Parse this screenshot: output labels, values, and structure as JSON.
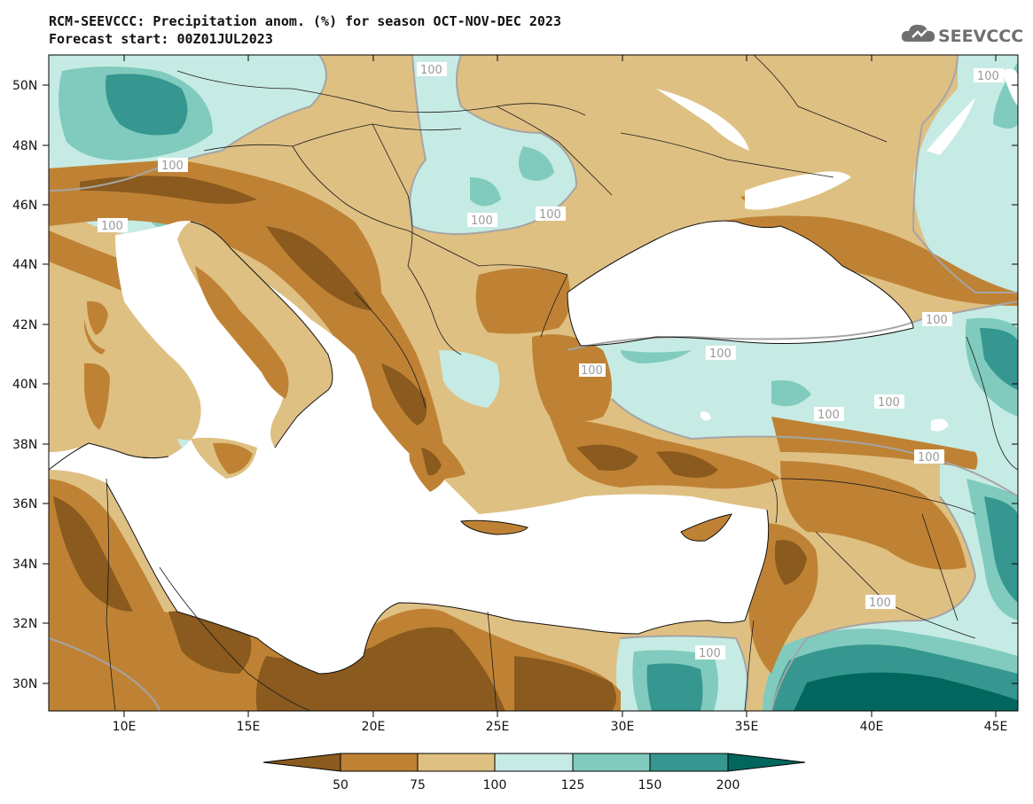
{
  "header": {
    "title_line1": "RCM-SEEVCCC: Precipitation anom. (%) for season OCT-NOV-DEC 2023",
    "title_line2": "Forecast start: 00Z01JUL2023"
  },
  "logo": {
    "text": "SEEVCCC",
    "icon": "cloud-icon"
  },
  "map": {
    "lat_labels": [
      "50N",
      "48N",
      "46N",
      "44N",
      "42N",
      "40N",
      "38N",
      "36N",
      "34N",
      "32N",
      "30N"
    ],
    "lon_labels": [
      "10E",
      "15E",
      "20E",
      "25E",
      "30E",
      "35E",
      "40E",
      "45E"
    ],
    "contour_labels": [
      "100",
      "100",
      "100",
      "100",
      "100",
      "100",
      "100",
      "100",
      "100",
      "100",
      "100",
      "100",
      "100",
      "100"
    ],
    "colors": {
      "very_dry": "#8a5a1e",
      "dry": "#bf8234",
      "slightly_dry": "#dfc083",
      "slightly_wet": "#c6ebe4",
      "wet": "#80cbbd",
      "very_wet": "#35978f",
      "extreme_wet": "#01665e",
      "sea": "#ffffff"
    }
  },
  "colorbar": {
    "labels": [
      "50",
      "75",
      "100",
      "125",
      "150",
      "200"
    ],
    "colors": [
      "#8a5a1e",
      "#bf8234",
      "#dfc083",
      "#c6ebe4",
      "#80cbbd",
      "#35978f",
      "#01665e"
    ]
  }
}
